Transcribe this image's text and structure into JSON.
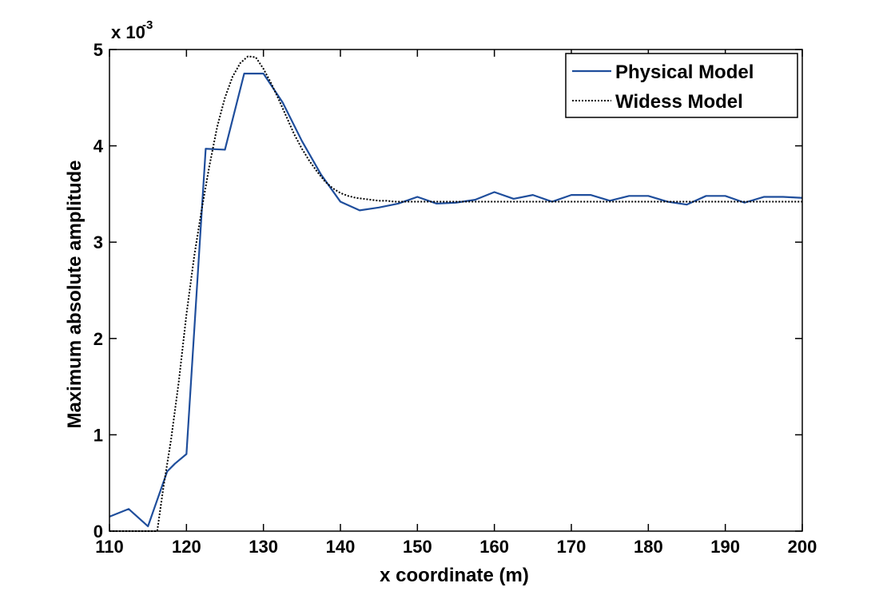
{
  "chart_data": {
    "type": "line",
    "title": "",
    "xlabel": "x coordinate (m)",
    "ylabel": "Maximum absolute amplitude",
    "y_multiplier": "x 10",
    "y_multiplier_exponent": "-3",
    "xlim": [
      110,
      200
    ],
    "ylim": [
      0,
      5
    ],
    "xticks": [
      110,
      120,
      130,
      140,
      150,
      160,
      170,
      180,
      190,
      200
    ],
    "yticks": [
      0,
      1,
      2,
      3,
      4,
      5
    ],
    "grid": false,
    "legend_position": "top-right",
    "series": [
      {
        "name": "Physical Model",
        "color": "#1f4e9c",
        "style": "solid",
        "x": [
          110,
          112.5,
          115,
          117.5,
          118.5,
          120,
          122.5,
          125,
          127.5,
          130,
          132.5,
          135,
          137.5,
          140,
          142.5,
          145,
          147.5,
          150,
          152.5,
          155,
          157.5,
          160,
          162.5,
          165,
          167.5,
          170,
          172.5,
          175,
          177.5,
          180,
          182.5,
          185,
          187.5,
          190,
          192.5,
          195,
          197.5,
          200
        ],
        "y": [
          0.15,
          0.23,
          0.05,
          0.62,
          0.7,
          0.8,
          3.97,
          3.96,
          4.75,
          4.75,
          4.45,
          4.05,
          3.7,
          3.42,
          3.33,
          3.36,
          3.4,
          3.47,
          3.4,
          3.41,
          3.44,
          3.52,
          3.45,
          3.49,
          3.42,
          3.49,
          3.49,
          3.43,
          3.48,
          3.48,
          3.42,
          3.39,
          3.48,
          3.48,
          3.41,
          3.47,
          3.47,
          3.46
        ]
      },
      {
        "name": "Widess Model",
        "color": "#000000",
        "style": "dotted",
        "x": [
          110,
          115,
          116.2,
          117,
          118,
          119,
          120,
          121,
          122,
          123,
          124,
          125,
          126,
          127,
          128,
          129,
          130,
          131,
          132,
          133,
          134,
          135,
          136,
          137,
          138,
          139,
          140,
          141,
          142,
          143,
          144,
          145,
          146,
          147,
          148,
          150,
          155,
          160,
          170,
          180,
          190,
          200
        ],
        "y": [
          0,
          0,
          0,
          0.45,
          0.95,
          1.55,
          2.25,
          2.85,
          3.35,
          3.8,
          4.2,
          4.5,
          4.72,
          4.86,
          4.93,
          4.92,
          4.8,
          4.65,
          4.48,
          4.3,
          4.12,
          3.97,
          3.84,
          3.73,
          3.63,
          3.56,
          3.51,
          3.48,
          3.46,
          3.45,
          3.44,
          3.43,
          3.43,
          3.42,
          3.42,
          3.42,
          3.42,
          3.42,
          3.42,
          3.42,
          3.42,
          3.42
        ]
      }
    ]
  }
}
